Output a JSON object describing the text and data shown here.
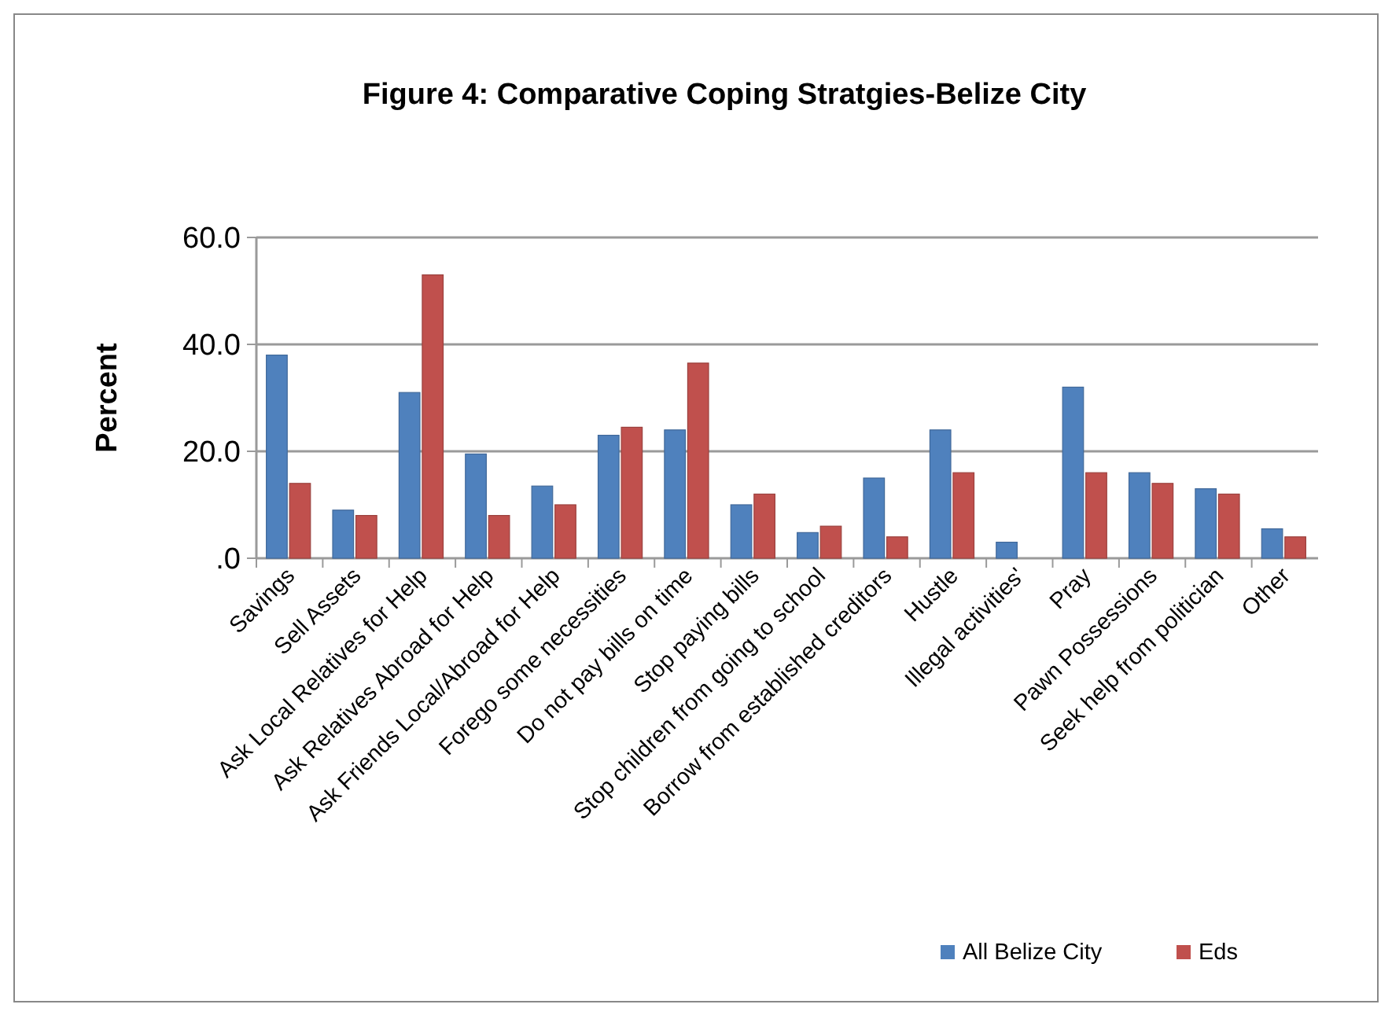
{
  "chart_data": {
    "type": "bar",
    "title": "Figure 4:  Comparative Coping Stratgies-Belize City",
    "ylabel": "Percent",
    "categories": [
      "Savings",
      "Sell Assets",
      "Ask Local Relatives for Help",
      "Ask Relatives Abroad for Help",
      "Ask Friends Local/Abroad for Help",
      "Forego some necessities",
      "Do not pay bills on time",
      "Stop paying bills",
      "Stop children from going to school",
      "Borrow from established creditors",
      "Hustle",
      "Illegal activities'",
      "Pray",
      "Pawn Possessions",
      "Seek help from politician",
      "Other"
    ],
    "series": [
      {
        "name": "All Belize City",
        "color": "#4f81bd",
        "values": [
          38,
          9,
          31,
          19.5,
          13.5,
          23,
          24,
          10,
          4.8,
          15,
          24,
          3,
          32,
          16,
          13,
          5.5
        ]
      },
      {
        "name": "Eds",
        "color": "#c0504d",
        "values": [
          14,
          8,
          53,
          8,
          10,
          24.5,
          36.5,
          12,
          6,
          4,
          16,
          0,
          16,
          14,
          12,
          4
        ]
      }
    ],
    "ylim": [
      0,
      60
    ],
    "yticks": [
      {
        "value": 0,
        "label": ".0"
      },
      {
        "value": 20,
        "label": "20.0"
      },
      {
        "value": 40,
        "label": "40.0"
      },
      {
        "value": 60,
        "label": "60.0"
      }
    ],
    "grid": "y",
    "legend": "bottom right"
  }
}
